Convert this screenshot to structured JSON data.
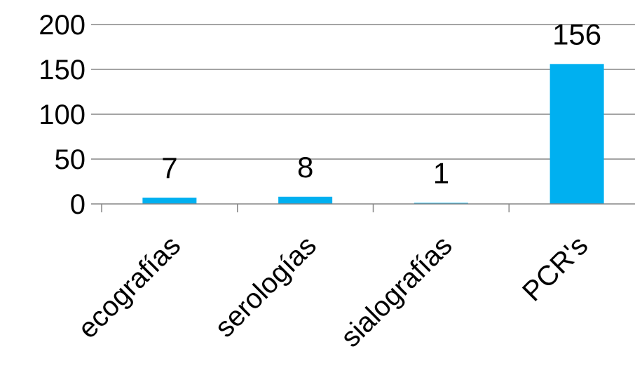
{
  "chart_data": {
    "type": "bar",
    "title": "",
    "xlabel": "",
    "ylabel": "",
    "categories": [
      "ecografías",
      "serologías",
      "sialografías",
      "PCR's"
    ],
    "values": [
      7,
      8,
      1,
      156
    ],
    "data_labels": [
      "7",
      "8",
      "1",
      "156"
    ],
    "ylim": [
      0,
      200
    ],
    "yticks": [
      0,
      50,
      100,
      150,
      200
    ],
    "ytick_labels": [
      "0",
      "50",
      "100",
      "150",
      "200"
    ],
    "grid": true,
    "legend": "none",
    "colors": {
      "bar": "#00B0F0",
      "grid": "#868686",
      "text": "#000000"
    }
  }
}
